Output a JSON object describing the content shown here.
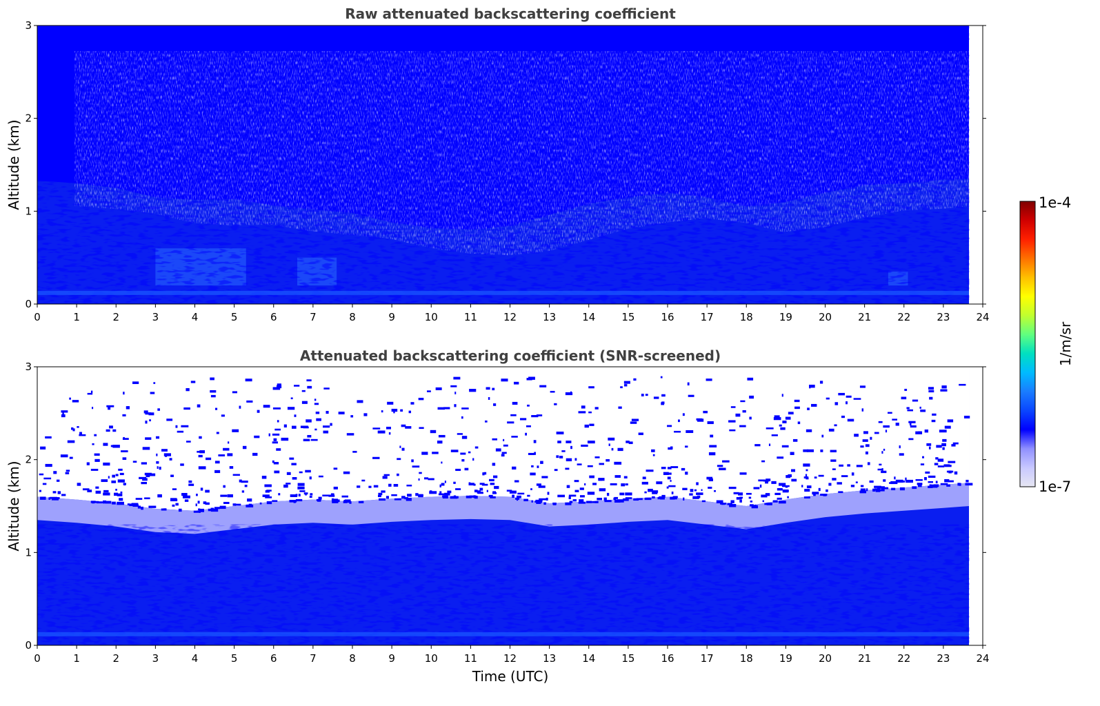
{
  "chart_data": [
    {
      "type": "heatmap",
      "title": "Raw attenuated backscattering coefficient",
      "xlabel": "",
      "ylabel": "Altitude (km)",
      "xlim": [
        0,
        24
      ],
      "ylim": [
        0,
        3
      ],
      "x_ticks": [
        "0",
        "1",
        "2",
        "3",
        "4",
        "5",
        "6",
        "7",
        "8",
        "9",
        "10",
        "11",
        "12",
        "13",
        "14",
        "15",
        "16",
        "17",
        "18",
        "19",
        "20",
        "21",
        "22",
        "23",
        "24"
      ],
      "y_ticks": [
        "0",
        "1",
        "2",
        "3"
      ],
      "data_end_time": 23.65,
      "noise_floor_km": [
        [
          0,
          1.33
        ],
        [
          1,
          1.3
        ],
        [
          2,
          1.25
        ],
        [
          3,
          1.15
        ],
        [
          4,
          1.12
        ],
        [
          5,
          1.13
        ],
        [
          6,
          1.06
        ],
        [
          7,
          1.02
        ],
        [
          8,
          0.98
        ],
        [
          9,
          0.88
        ],
        [
          10,
          0.82
        ],
        [
          11,
          0.8
        ],
        [
          12,
          0.84
        ],
        [
          13,
          0.96
        ],
        [
          14,
          1.08
        ],
        [
          15,
          1.15
        ],
        [
          16,
          1.2
        ],
        [
          17,
          1.15
        ],
        [
          18,
          1.05
        ],
        [
          19,
          1.1
        ],
        [
          20,
          1.2
        ],
        [
          21,
          1.28
        ],
        [
          22,
          1.3
        ],
        [
          23,
          1.34
        ],
        [
          23.65,
          1.35
        ]
      ],
      "aerosol_enhancements": [
        {
          "t_start": 3.0,
          "t_end": 5.3,
          "top_km": 0.6
        },
        {
          "t_start": 6.6,
          "t_end": 7.6,
          "top_km": 0.5
        },
        {
          "t_start": 21.6,
          "t_end": 22.1,
          "top_km": 0.35
        }
      ],
      "surface_layer_km": 0.12
    },
    {
      "type": "heatmap",
      "title": "Attenuated backscattering coefficient (SNR-screened)",
      "xlabel": "Time (UTC)",
      "ylabel": "Altitude (km)",
      "xlim": [
        0,
        24
      ],
      "ylim": [
        0,
        3
      ],
      "x_ticks": [
        "0",
        "1",
        "2",
        "3",
        "4",
        "5",
        "6",
        "7",
        "8",
        "9",
        "10",
        "11",
        "12",
        "13",
        "14",
        "15",
        "16",
        "17",
        "18",
        "19",
        "20",
        "21",
        "22",
        "23",
        "24"
      ],
      "y_ticks": [
        "0",
        "1",
        "2",
        "3"
      ],
      "data_end_time": 23.65,
      "boundary_layer_top_km": [
        [
          0,
          1.35
        ],
        [
          1,
          1.32
        ],
        [
          2,
          1.28
        ],
        [
          3,
          1.22
        ],
        [
          4,
          1.2
        ],
        [
          5,
          1.25
        ],
        [
          6,
          1.3
        ],
        [
          7,
          1.32
        ],
        [
          8,
          1.3
        ],
        [
          9,
          1.33
        ],
        [
          10,
          1.35
        ],
        [
          11,
          1.36
        ],
        [
          12,
          1.35
        ],
        [
          13,
          1.28
        ],
        [
          14,
          1.3
        ],
        [
          15,
          1.33
        ],
        [
          16,
          1.35
        ],
        [
          17,
          1.3
        ],
        [
          18,
          1.25
        ],
        [
          19,
          1.32
        ],
        [
          20,
          1.38
        ],
        [
          21,
          1.42
        ],
        [
          22,
          1.45
        ],
        [
          23,
          1.48
        ],
        [
          23.65,
          1.5
        ]
      ],
      "speckle_top_km": 2.0
    }
  ],
  "colorbar": {
    "label": "1/m/sr",
    "max_label": "1e-4",
    "min_label": "1e-7",
    "colormap": [
      "#e6e6f2",
      "#c8c8ff",
      "#9090ff",
      "#0000ff",
      "#0a46ff",
      "#1a7cff",
      "#00bbff",
      "#00e0c0",
      "#60ff80",
      "#c0ff30",
      "#ffff00",
      "#ffc000",
      "#ff7000",
      "#ff2000",
      "#d00000",
      "#800000"
    ]
  }
}
